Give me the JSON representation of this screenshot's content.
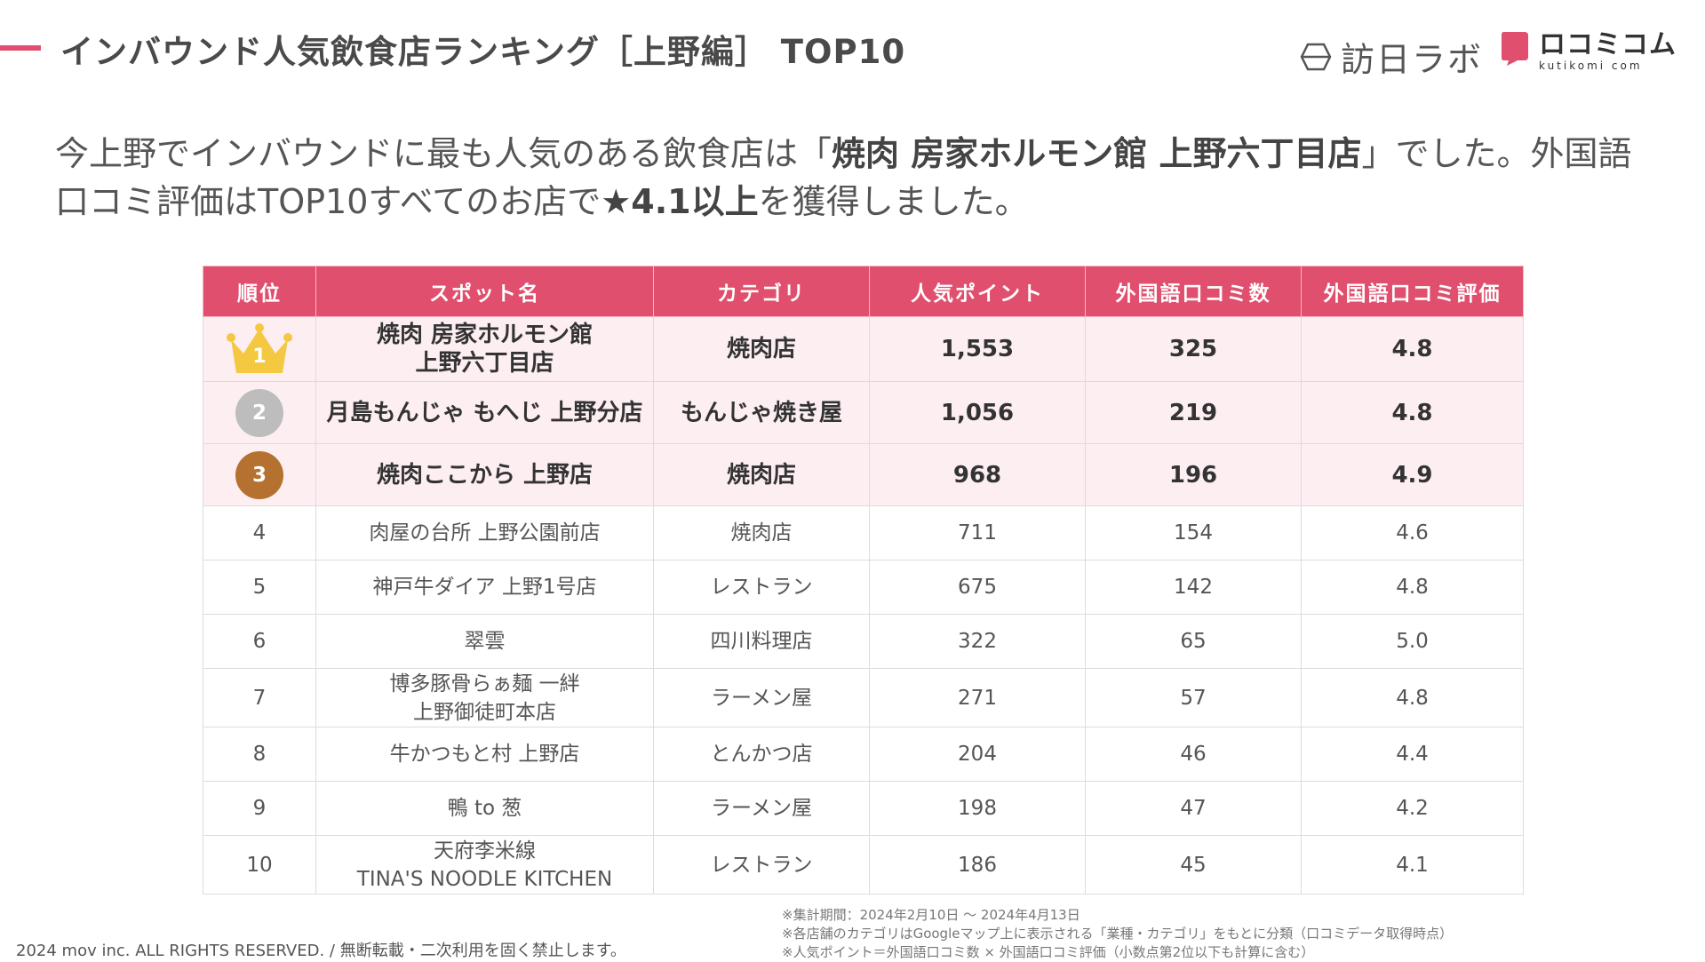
{
  "header": {
    "title": "インバウンド人気飲食店ランキング［上野編］ TOP10",
    "logo_hounichi": "訪日ラボ",
    "logo_kutikomi": "ロコミコム",
    "logo_kutikomi_sub": "kutikomi com"
  },
  "intro": {
    "part1": "今上野でインバウンドに最も人気のある飲食店は「",
    "bold1": "焼肉 房家ホルモン館 上野六丁目店",
    "part2": "」でした。外国語口コミ評価はTOP10すべてのお店で",
    "bold2": "★4.1以上",
    "part3": "を獲得しました。"
  },
  "table": {
    "headers": [
      "順位",
      "スポット名",
      "カテゴリ",
      "人気ポイント",
      "外国語口コミ数",
      "外国語口コミ評価"
    ],
    "rows": [
      {
        "rank": "1",
        "name": "焼肉 房家ホルモン館",
        "name2": "上野六丁目店",
        "category": "焼肉店",
        "points": "1,553",
        "reviews": "325",
        "rating": "4.8"
      },
      {
        "rank": "2",
        "name": "月島もんじゃ もへじ 上野分店",
        "name2": "",
        "category": "もんじゃ焼き屋",
        "points": "1,056",
        "reviews": "219",
        "rating": "4.8"
      },
      {
        "rank": "3",
        "name": "焼肉ここから 上野店",
        "name2": "",
        "category": "焼肉店",
        "points": "968",
        "reviews": "196",
        "rating": "4.9"
      },
      {
        "rank": "4",
        "name": "肉屋の台所 上野公園前店",
        "name2": "",
        "category": "焼肉店",
        "points": "711",
        "reviews": "154",
        "rating": "4.6"
      },
      {
        "rank": "5",
        "name": "神戸牛ダイア 上野1号店",
        "name2": "",
        "category": "レストラン",
        "points": "675",
        "reviews": "142",
        "rating": "4.8"
      },
      {
        "rank": "6",
        "name": "翠雲",
        "name2": "",
        "category": "四川料理店",
        "points": "322",
        "reviews": "65",
        "rating": "5.0"
      },
      {
        "rank": "7",
        "name": "博多豚骨らぁ麺 一絆",
        "name2": "上野御徒町本店",
        "category": "ラーメン屋",
        "points": "271",
        "reviews": "57",
        "rating": "4.8"
      },
      {
        "rank": "8",
        "name": "牛かつもと村 上野店",
        "name2": "",
        "category": "とんかつ店",
        "points": "204",
        "reviews": "46",
        "rating": "4.4"
      },
      {
        "rank": "9",
        "name": "鴨 to 葱",
        "name2": "",
        "category": "ラーメン屋",
        "points": "198",
        "reviews": "47",
        "rating": "4.2"
      },
      {
        "rank": "10",
        "name": "天府李米線",
        "name2": "TINA'S NOODLE KITCHEN",
        "category": "レストラン",
        "points": "186",
        "reviews": "45",
        "rating": "4.1"
      }
    ]
  },
  "footer": {
    "copyright": "2024 mov inc. ALL RIGHTS RESERVED. / 無断転載・二次利用を固く禁止します。",
    "notes": [
      "※集計期間：2024年2月10日 〜 2024年4月13日",
      "※各店舗のカテゴリはGoogleマップ上に表示される「業種・カテゴリ」をもとに分類（口コミデータ取得時点）",
      "※人気ポイント＝外国語口コミ数 × 外国語口コミ評価（小数点第2位以下も計算に含む）"
    ]
  },
  "colors": {
    "accent": "#e0506e",
    "top_row_bg": "#fdeef2",
    "gold": "#f5c842",
    "silver": "#bdbdbd",
    "bronze": "#b5712f"
  }
}
